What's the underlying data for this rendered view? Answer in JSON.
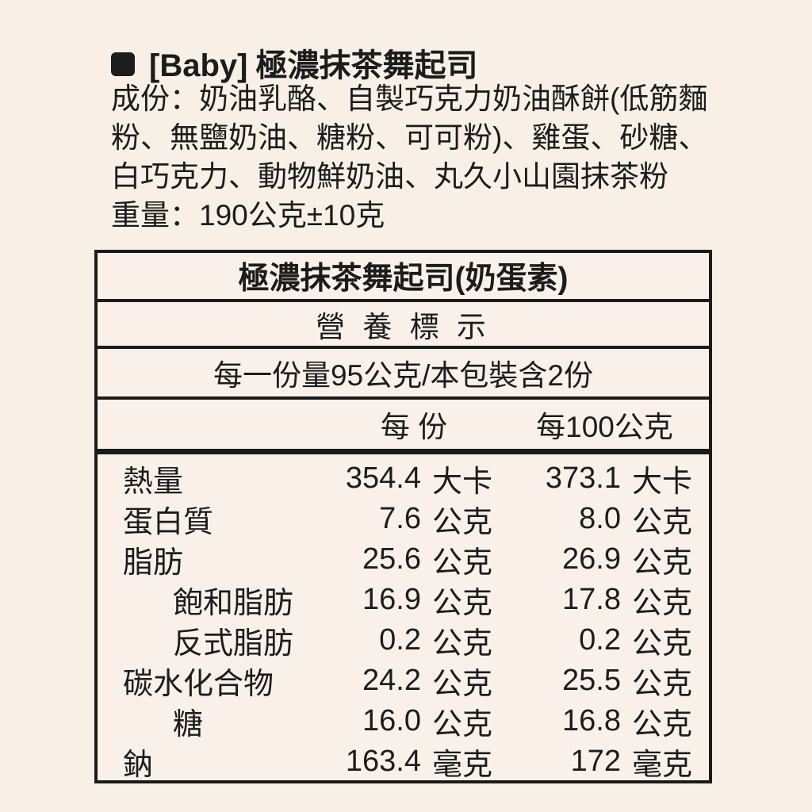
{
  "page": {
    "background_color": "#f8f0e7",
    "text_color": "#1c1c1c",
    "border_color": "#1b1b1b"
  },
  "header": {
    "bullet_icon": "black-rounded-square",
    "brand": "[Baby]",
    "product_name": "極濃抹茶舞起司"
  },
  "info": {
    "ingredients_lines": [
      "成份：奶油乳酪、自製巧克力奶油酥餅(低筋麵",
      "粉、無鹽奶油、糖粉、可可粉)、雞蛋、砂糖、",
      "白巧克力、動物鮮奶油、丸久小山園抹茶粉"
    ],
    "weight_line": "重量：190公克±10克"
  },
  "nutrition_table": {
    "title": "極濃抹茶舞起司(奶蛋素)",
    "section_label": "營 養 標 示",
    "serving_info": "每一份量95公克/本包裝含2份",
    "col_headers": {
      "per_serving": "每 份",
      "per_100g": "每100公克"
    },
    "rows": [
      {
        "label": "熱量",
        "indent": false,
        "per_serving_value": "354.4",
        "per_serving_unit": "大卡",
        "per_100g_value": "373.1",
        "per_100g_unit": "大卡"
      },
      {
        "label": "蛋白質",
        "indent": false,
        "per_serving_value": "7.6",
        "per_serving_unit": "公克",
        "per_100g_value": "8.0",
        "per_100g_unit": "公克"
      },
      {
        "label": "脂肪",
        "indent": false,
        "per_serving_value": "25.6",
        "per_serving_unit": "公克",
        "per_100g_value": "26.9",
        "per_100g_unit": "公克"
      },
      {
        "label": "飽和脂肪",
        "indent": true,
        "per_serving_value": "16.9",
        "per_serving_unit": "公克",
        "per_100g_value": "17.8",
        "per_100g_unit": "公克"
      },
      {
        "label": "反式脂肪",
        "indent": true,
        "per_serving_value": "0.2",
        "per_serving_unit": "公克",
        "per_100g_value": "0.2",
        "per_100g_unit": "公克"
      },
      {
        "label": "碳水化合物",
        "indent": false,
        "per_serving_value": "24.2",
        "per_serving_unit": "公克",
        "per_100g_value": "25.5",
        "per_100g_unit": "公克"
      },
      {
        "label": "糖",
        "indent": true,
        "per_serving_value": "16.0",
        "per_serving_unit": "公克",
        "per_100g_value": "16.8",
        "per_100g_unit": "公克"
      },
      {
        "label": "鈉",
        "indent": false,
        "per_serving_value": "163.4",
        "per_serving_unit": "毫克",
        "per_100g_value": "172",
        "per_100g_unit": "毫克"
      }
    ]
  }
}
